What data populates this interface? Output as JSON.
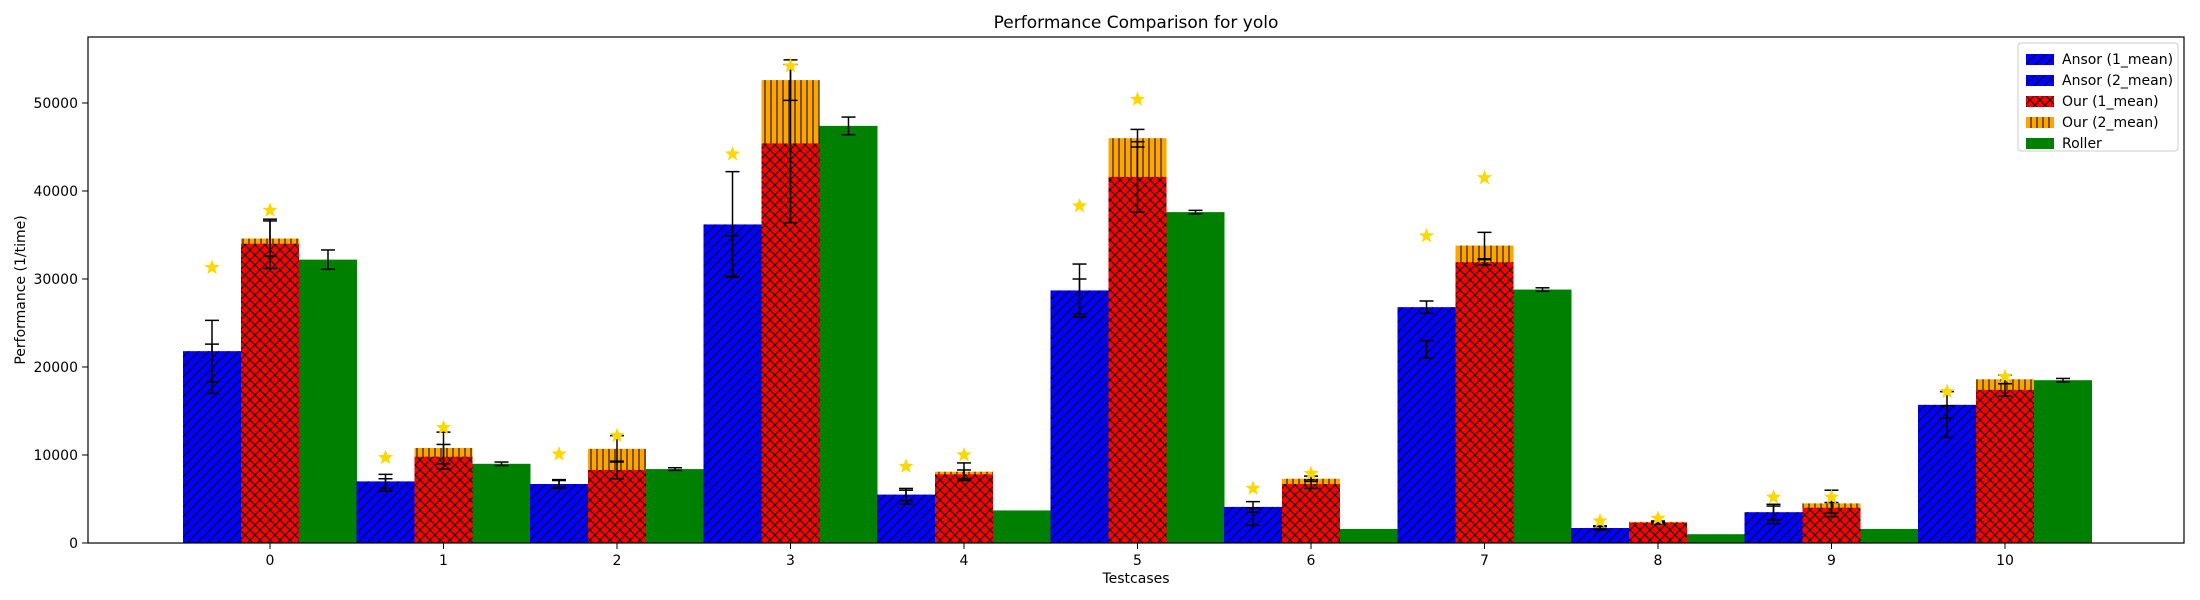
{
  "chart_data": {
    "type": "bar",
    "title": "Performance Comparison for yolo",
    "xlabel": "Testcases",
    "ylabel": "Performance (1/time)",
    "categories": [
      "0",
      "1",
      "2",
      "3",
      "4",
      "5",
      "6",
      "7",
      "8",
      "9",
      "10"
    ],
    "ylim": [
      0,
      57500
    ],
    "yticks": [
      0,
      10000,
      20000,
      30000,
      40000,
      50000
    ],
    "ytick_labels": [
      "0",
      "10000",
      "20000",
      "30000",
      "40000",
      "50000"
    ],
    "legend_position": "top-right",
    "series": [
      {
        "name": "Ansor (1_mean)",
        "color": "#0000ff",
        "hatch": "diagonal",
        "values": [
          21800,
          7000,
          6700,
          36200,
          5500,
          28700,
          4100,
          26800,
          1700,
          3500,
          15700
        ],
        "error": [
          3500,
          800,
          500,
          6000,
          700,
          3000,
          600,
          700,
          250,
          900,
          1500
        ]
      },
      {
        "name": "Ansor (2_mean)",
        "color": "#0000ff",
        "hatch": "diagonal",
        "values": [
          19800,
          6600,
          6700,
          32600,
          5200,
          28000,
          3000,
          22000,
          1700,
          3200,
          13800
        ],
        "error": [
          2800,
          700,
          400,
          2300,
          800,
          2000,
          1000,
          1000,
          150,
          1000,
          1800
        ]
      },
      {
        "name": "Our (1_mean)",
        "color": "#ff0000",
        "hatch": "cross",
        "values": [
          34000,
          9800,
          8300,
          45400,
          7800,
          41600,
          6700,
          31900,
          2300,
          4000,
          17400
        ],
        "error": [
          2800,
          1400,
          1000,
          9000,
          500,
          4000,
          500,
          300,
          150,
          600,
          700
        ]
      },
      {
        "name": "Our (2_mean)",
        "color": "#ffa500",
        "hatch": "vertical",
        "values": [
          34600,
          10800,
          10700,
          52600,
          8100,
          46000,
          7300,
          33800,
          2400,
          4500,
          18600
        ],
        "error": [
          2000,
          1800,
          1500,
          2300,
          1000,
          1000,
          300,
          1500,
          100,
          1500,
          500
        ]
      },
      {
        "name": "Roller",
        "color": "#008000",
        "hatch": "none",
        "values": [
          32200,
          9000,
          8400,
          47400,
          3700,
          37600,
          1600,
          28800,
          1000,
          1600,
          18500
        ],
        "error": [
          1100,
          200,
          150,
          1000,
          0,
          200,
          0,
          200,
          0,
          0,
          200
        ]
      }
    ],
    "stars": {
      "color": "#ffd700",
      "ansor": [
        31300,
        9700,
        10100,
        44200,
        8700,
        38300,
        6200,
        34900,
        2500,
        5200,
        17200
      ],
      "our": [
        37800,
        13100,
        12200,
        54200,
        10000,
        50400,
        7900,
        41500,
        2800,
        5200,
        18900
      ]
    }
  }
}
